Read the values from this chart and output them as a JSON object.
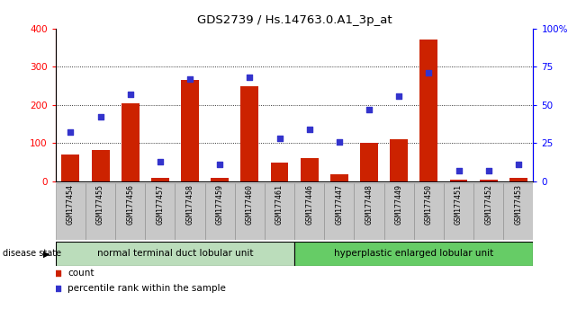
{
  "title": "GDS2739 / Hs.14763.0.A1_3p_at",
  "samples": [
    "GSM177454",
    "GSM177455",
    "GSM177456",
    "GSM177457",
    "GSM177458",
    "GSM177459",
    "GSM177460",
    "GSM177461",
    "GSM177446",
    "GSM177447",
    "GSM177448",
    "GSM177449",
    "GSM177450",
    "GSM177451",
    "GSM177452",
    "GSM177453"
  ],
  "counts": [
    70,
    82,
    205,
    10,
    265,
    8,
    248,
    50,
    60,
    18,
    100,
    110,
    372,
    5,
    5,
    10
  ],
  "percentiles": [
    32,
    42,
    57,
    13,
    67,
    11,
    68,
    28,
    34,
    26,
    47,
    56,
    71,
    7,
    7,
    11
  ],
  "group1_label": "normal terminal duct lobular unit",
  "group2_label": "hyperplastic enlarged lobular unit",
  "group1_count": 8,
  "group2_count": 8,
  "disease_state_label": "disease state",
  "legend_count_label": "count",
  "legend_pct_label": "percentile rank within the sample",
  "bar_color": "#cc2200",
  "dot_color": "#3333cc",
  "group1_bg": "#bbddbb",
  "group2_bg": "#66cc66",
  "ylim_left": [
    0,
    400
  ],
  "ylim_right": [
    0,
    100
  ],
  "yticks_left": [
    0,
    100,
    200,
    300,
    400
  ],
  "yticks_right": [
    0,
    25,
    50,
    75,
    100
  ],
  "yticklabels_right": [
    "0",
    "25",
    "50",
    "75",
    "100%"
  ]
}
